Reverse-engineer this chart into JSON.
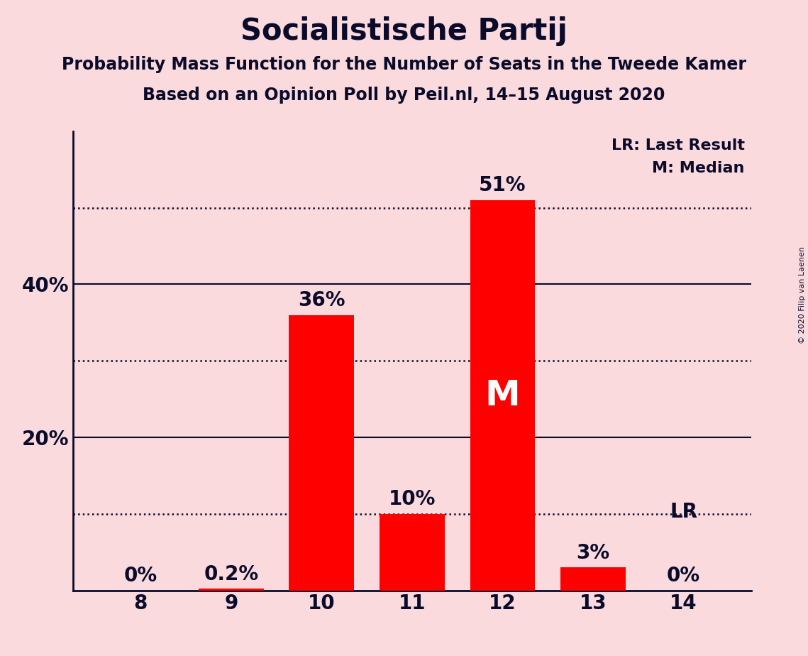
{
  "title": "Socialistische Partij",
  "subtitle1": "Probability Mass Function for the Number of Seats in the Tweede Kamer",
  "subtitle2": "Based on an Opinion Poll by Peil.nl, 14–15 August 2020",
  "copyright": "© 2020 Filip van Laenen",
  "categories": [
    8,
    9,
    10,
    11,
    12,
    13,
    14
  ],
  "values": [
    0.0,
    0.2,
    36.0,
    10.0,
    51.0,
    3.0,
    0.0
  ],
  "bar_color": "#FF0000",
  "background_color": "#FADADD",
  "ylim": [
    0,
    60
  ],
  "solid_lines": [
    20,
    40
  ],
  "dotted_lines": [
    10,
    30,
    50
  ],
  "ytick_positions": [
    20,
    40
  ],
  "ytick_labels": [
    "20%",
    "40%"
  ],
  "median_bar": 12,
  "median_label": "M",
  "lr_bar": 14,
  "lr_label": "LR",
  "legend_lr": "LR: Last Result",
  "legend_m": "M: Median",
  "bar_labels": [
    "0%",
    "0.2%",
    "36%",
    "10%",
    "51%",
    "3%",
    "0%"
  ],
  "title_fontsize": 30,
  "subtitle_fontsize": 17,
  "label_fontsize": 20,
  "axis_fontsize": 20,
  "legend_fontsize": 16,
  "bar_width": 0.72,
  "text_color": "#0a0a2a",
  "xlim": [
    7.25,
    14.75
  ]
}
